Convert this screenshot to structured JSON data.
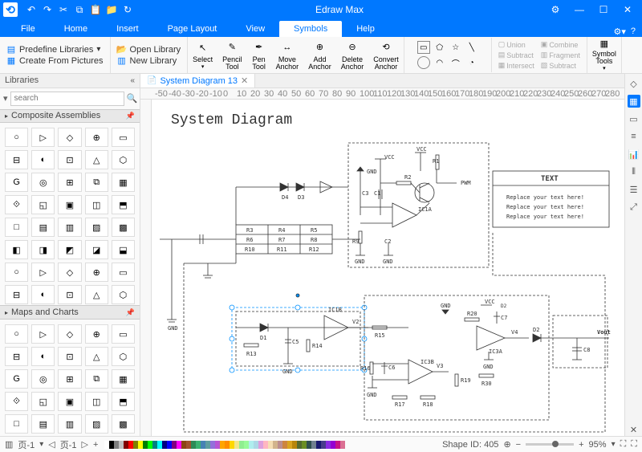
{
  "app": {
    "title": "Edraw Max"
  },
  "qat": [
    "↶",
    "↷",
    "✂",
    "⧉",
    "📋",
    "📁",
    "↻"
  ],
  "win": {
    "gear": "⚙",
    "min": "—",
    "max": "☐",
    "close": "✕"
  },
  "ribbon": {
    "tabs": [
      "File",
      "Home",
      "Insert",
      "Page Layout",
      "View",
      "Symbols",
      "Help"
    ],
    "active": 5
  },
  "toolbar": {
    "links": {
      "predef": "Predefine Libraries",
      "open": "Open Library",
      "create": "Create From Pictures",
      "new": "New Library"
    },
    "tools": {
      "select": "Select",
      "pencil": "Pencil\nTool",
      "pen": "Pen\nTool",
      "move": "Move\nAnchor",
      "add": "Add\nAnchor",
      "delete": "Delete\nAnchor",
      "convert": "Convert\nAnchor"
    },
    "merge": [
      "Union",
      "Combine",
      "Subtract",
      "Fragment",
      "Intersect",
      "Subtract"
    ],
    "symbol": "Symbol\nTools"
  },
  "sidebar": {
    "title": "Libraries",
    "search_placeholder": "search",
    "sections": {
      "comp": "Composite Assemblies",
      "maps": "Maps and Charts"
    }
  },
  "doc": {
    "tab": "System Diagram 13"
  },
  "canvas": {
    "title": "System Diagram",
    "ruler_marks": [
      -50,
      -40,
      -30,
      -20,
      -10,
      0,
      10,
      20,
      30,
      40,
      50,
      60,
      70,
      80,
      90,
      100,
      110,
      120,
      130,
      140,
      150,
      160,
      170,
      180,
      190,
      200,
      210,
      220,
      230,
      240,
      250,
      260,
      270,
      280
    ],
    "textbox": {
      "title": "TEXT",
      "lines": [
        "Replace your text here!",
        "Replace your text here!",
        "Replace your text here!"
      ]
    },
    "labels": {
      "gnd": "GND",
      "vcc": "VCC",
      "pwm": "PWM",
      "vout": "Vout",
      "r1": "R1",
      "r2": "R2",
      "r3": "R3",
      "r4": "R4",
      "r5": "R5",
      "r6": "R6",
      "r7": "R7",
      "r8": "R8",
      "r9": "R9",
      "r10": "R10",
      "r11": "R11",
      "r12": "R12",
      "r13": "R13",
      "r14": "R14",
      "r15": "R15",
      "r16": "R16",
      "r17": "R17",
      "r18": "R18",
      "r19": "R19",
      "r20": "R20",
      "r30": "R30",
      "c1": "C1",
      "c2": "C2",
      "c3": "C3",
      "c5": "C5",
      "c6": "C6",
      "c7": "C7",
      "c8": "C8",
      "d1": "D1",
      "d2": "D2",
      "d3": "D3",
      "d4": "D4",
      "v2": "V2",
      "v3": "V3",
      "v4": "V4",
      "ic1a": "IC1A",
      "ic1b": "IC1B",
      "ic3a": "IC3A",
      "ic3b": "IC3B"
    }
  },
  "status": {
    "page_sel": "页-1",
    "page": "页-1",
    "shape_id": "Shape ID: 405",
    "zoom": "95%",
    "colors": [
      "#fff",
      "#000",
      "#7f7f7f",
      "#c0c0c0",
      "#800000",
      "#f00",
      "#808000",
      "#ff0",
      "#008000",
      "#0f0",
      "#008080",
      "#0ff",
      "#000080",
      "#00f",
      "#800080",
      "#f0f",
      "#8b4513",
      "#a0522d",
      "#2e8b57",
      "#3cb371",
      "#4682b4",
      "#5f9ea0",
      "#9370db",
      "#ba55d3",
      "#ffa500",
      "#ff8c00",
      "#ffd700",
      "#f0e68c",
      "#90ee90",
      "#98fb98",
      "#afeeee",
      "#add8e6",
      "#dda0dd",
      "#ffb6c1",
      "#f5deb3",
      "#d2b48c",
      "#bc8f8f",
      "#cd853f",
      "#daa520",
      "#b8860b",
      "#556b2f",
      "#6b8e23",
      "#2f4f4f",
      "#708090",
      "#191970",
      "#483d8b",
      "#8a2be2",
      "#9400d3",
      "#c71585",
      "#db7093"
    ]
  }
}
